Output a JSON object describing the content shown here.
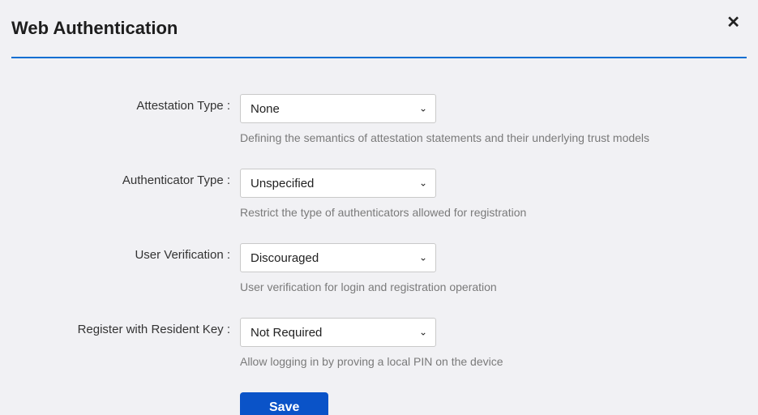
{
  "dialog": {
    "title": "Web Authentication",
    "close_glyph": "✕"
  },
  "colors": {
    "background": "#f1f1f4",
    "rule": "#0a6fd2",
    "select_bg": "#ffffff",
    "select_border": "#c9c9c9",
    "help_text": "#7a7a7a",
    "button_bg": "#0a53c8",
    "button_fg": "#ffffff"
  },
  "fields": {
    "attestation": {
      "label": "Attestation Type :",
      "value": "None",
      "help": "Defining the semantics of attestation statements and their underlying trust models"
    },
    "authenticator": {
      "label": "Authenticator Type :",
      "value": "Unspecified",
      "help": "Restrict the type of authenticators allowed for registration"
    },
    "verification": {
      "label": "User Verification :",
      "value": "Discouraged",
      "help": "User verification for login and registration operation"
    },
    "residentKey": {
      "label": "Register with Resident Key :",
      "value": "Not Required",
      "help": "Allow logging in by proving a local PIN on the device"
    }
  },
  "actions": {
    "save_label": "Save"
  }
}
